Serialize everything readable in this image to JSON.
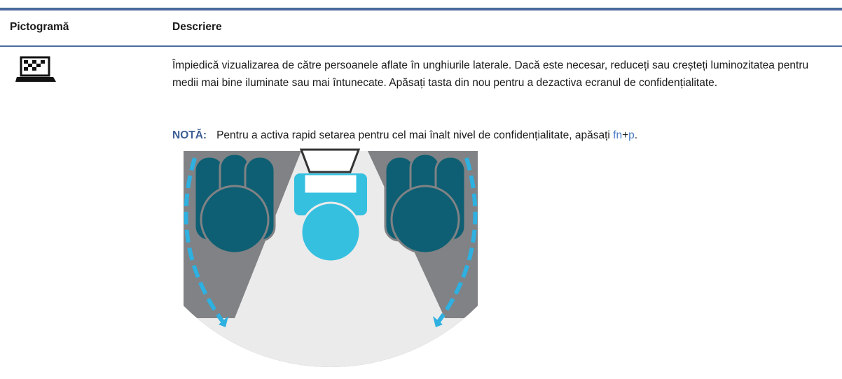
{
  "table": {
    "headers": [
      "Pictogramă",
      "Descriere"
    ],
    "rows": [
      {
        "description": "Împiedică vizualizarea de către persoanele aflate în unghiurile laterale. Dacă este necesar, reduceți sau creșteți luminozitatea pentru medii mai bine iluminate sau mai întunecate. Apăsați tasta din nou pentru a dezactiva ecranul de confidențialitate.",
        "note": {
          "label": "NOTĂ:",
          "text": "Pentru a activa rapid setarea pentru cel mai înalt nivel de confidențialitate, apăsați",
          "key1": "fn",
          "plus": "+",
          "key2": "p",
          "period": "."
        }
      }
    ]
  }
}
